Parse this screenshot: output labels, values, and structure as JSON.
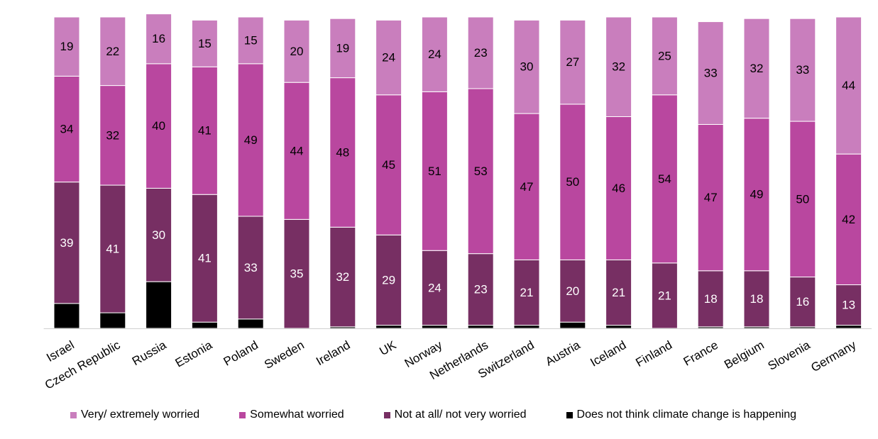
{
  "chart_data": {
    "type": "bar",
    "stacked": true,
    "orientation": "vertical",
    "categories": [
      "Israel",
      "Czech Republic",
      "Russia",
      "Estonia",
      "Poland",
      "Sweden",
      "Ireland",
      "UK",
      "Norway",
      "Netherlands",
      "Switzerland",
      "Austria",
      "Iceland",
      "Finland",
      "France",
      "Belgium",
      "Slovenia",
      "Germany"
    ],
    "series": [
      {
        "name": "Does not think climate change is happening",
        "color": "#000000",
        "label_color": "#ffffff",
        "values": [
          8,
          5,
          15,
          2,
          3,
          0,
          0.5,
          1,
          1,
          1,
          1,
          2,
          1,
          0,
          0.5,
          0.5,
          0.5,
          1
        ],
        "show_labels": false
      },
      {
        "name": "Not at all/ not very worried",
        "color": "#772f63",
        "label_color": "#ffffff",
        "values": [
          39,
          41,
          30,
          41,
          33,
          35,
          32,
          29,
          24,
          23,
          21,
          20,
          21,
          21,
          18,
          18,
          16,
          13
        ],
        "show_labels": true
      },
      {
        "name": "Somewhat worried",
        "color": "#b9479f",
        "label_color": "#000000",
        "values": [
          34,
          32,
          40,
          41,
          49,
          44,
          48,
          45,
          51,
          53,
          47,
          50,
          46,
          54,
          47,
          49,
          50,
          42
        ],
        "show_labels": true
      },
      {
        "name": "Very/ extremely worried",
        "color": "#c97ebd",
        "label_color": "#000000",
        "values": [
          19,
          22,
          16,
          15,
          15,
          20,
          19,
          24,
          24,
          23,
          30,
          27,
          32,
          25,
          33,
          32,
          33,
          44
        ],
        "show_labels": true
      }
    ],
    "legend_order": [
      "Very/ extremely worried",
      "Somewhat worried",
      "Not at all/ not very worried",
      "Does not think climate change is happening"
    ],
    "legend_position": "bottom",
    "grid": false,
    "ylim": [
      0,
      100
    ],
    "title": "",
    "xlabel": "",
    "ylabel": ""
  }
}
